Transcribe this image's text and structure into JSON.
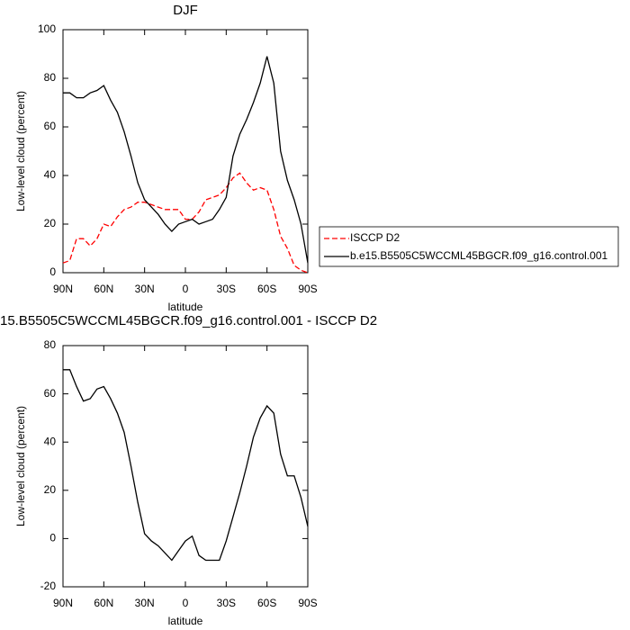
{
  "chart_data": [
    {
      "type": "line",
      "title": "DJF",
      "xlabel": "latitude",
      "ylabel": "Low-level cloud (percent)",
      "x": [
        90,
        85,
        80,
        75,
        70,
        65,
        60,
        55,
        50,
        45,
        40,
        35,
        30,
        25,
        20,
        15,
        10,
        5,
        0,
        -5,
        -10,
        -15,
        -20,
        -25,
        -30,
        -35,
        -40,
        -45,
        -50,
        -55,
        -60,
        -65,
        -70,
        -75,
        -80,
        -85,
        -90
      ],
      "series": [
        {
          "name": "ISCCP D2",
          "color": "#ff0000",
          "dash": true,
          "values": [
            4,
            5,
            14,
            14,
            11,
            14,
            20,
            19,
            23,
            26,
            27,
            29,
            29,
            28,
            27,
            26,
            26,
            26,
            22,
            22,
            25,
            30,
            31,
            32,
            35,
            39,
            41,
            37,
            34,
            35,
            34,
            26,
            15,
            10,
            3,
            1,
            0
          ]
        },
        {
          "name": "b.e15.B5505C5WCCML45BGCR.f09_g16.control.001",
          "color": "#000000",
          "dash": false,
          "values": [
            74,
            74,
            72,
            72,
            74,
            75,
            77,
            71,
            66,
            58,
            48,
            37,
            30,
            27,
            24,
            20,
            17,
            20,
            21,
            22,
            20,
            21,
            22,
            26,
            31,
            48,
            57,
            63,
            70,
            78,
            89,
            78,
            50,
            38,
            30,
            20,
            4
          ]
        }
      ],
      "xlim": [
        90,
        -90
      ],
      "xticks": [
        {
          "value": 90,
          "label": "90N"
        },
        {
          "value": 60,
          "label": "60N"
        },
        {
          "value": 30,
          "label": "30N"
        },
        0,
        {
          "value": -30,
          "label": "30S"
        },
        {
          "value": -60,
          "label": "60S"
        },
        {
          "value": -90,
          "label": "90S"
        }
      ],
      "ylim": [
        0,
        100
      ],
      "yticks": [
        0,
        20,
        40,
        60,
        80,
        100
      ]
    },
    {
      "type": "line",
      "title": "15.B5505C5WCCML45BGCR.f09_g16.control.001 - ISCCP D2",
      "xlabel": "latitude",
      "ylabel": "Low-level cloud (percent)",
      "x": [
        90,
        85,
        80,
        75,
        70,
        65,
        60,
        55,
        50,
        45,
        40,
        35,
        30,
        25,
        20,
        15,
        10,
        5,
        0,
        -5,
        -10,
        -15,
        -20,
        -25,
        -30,
        -35,
        -40,
        -45,
        -50,
        -55,
        -60,
        -65,
        -70,
        -75,
        -80,
        -85,
        -90
      ],
      "series": [
        {
          "color": "#000000",
          "dash": false,
          "values": [
            70,
            70,
            63,
            57,
            58,
            62,
            63,
            58,
            52,
            44,
            30,
            15,
            2,
            -1,
            -3,
            -6,
            -9,
            -5,
            -1,
            1,
            -7,
            -9,
            -9,
            -9,
            -1,
            9,
            19,
            30,
            42,
            50,
            55,
            52,
            35,
            26,
            26,
            17,
            5
          ]
        }
      ],
      "xlim": [
        90,
        -90
      ],
      "xticks": [
        {
          "value": 90,
          "label": "90N"
        },
        {
          "value": 60,
          "label": "60N"
        },
        {
          "value": 30,
          "label": "30N"
        },
        0,
        {
          "value": -30,
          "label": "30S"
        },
        {
          "value": -60,
          "label": "60S"
        },
        {
          "value": -90,
          "label": "90S"
        }
      ],
      "ylim": [
        -20,
        80
      ],
      "yticks": [
        -20,
        0,
        20,
        40,
        60,
        80
      ]
    }
  ]
}
